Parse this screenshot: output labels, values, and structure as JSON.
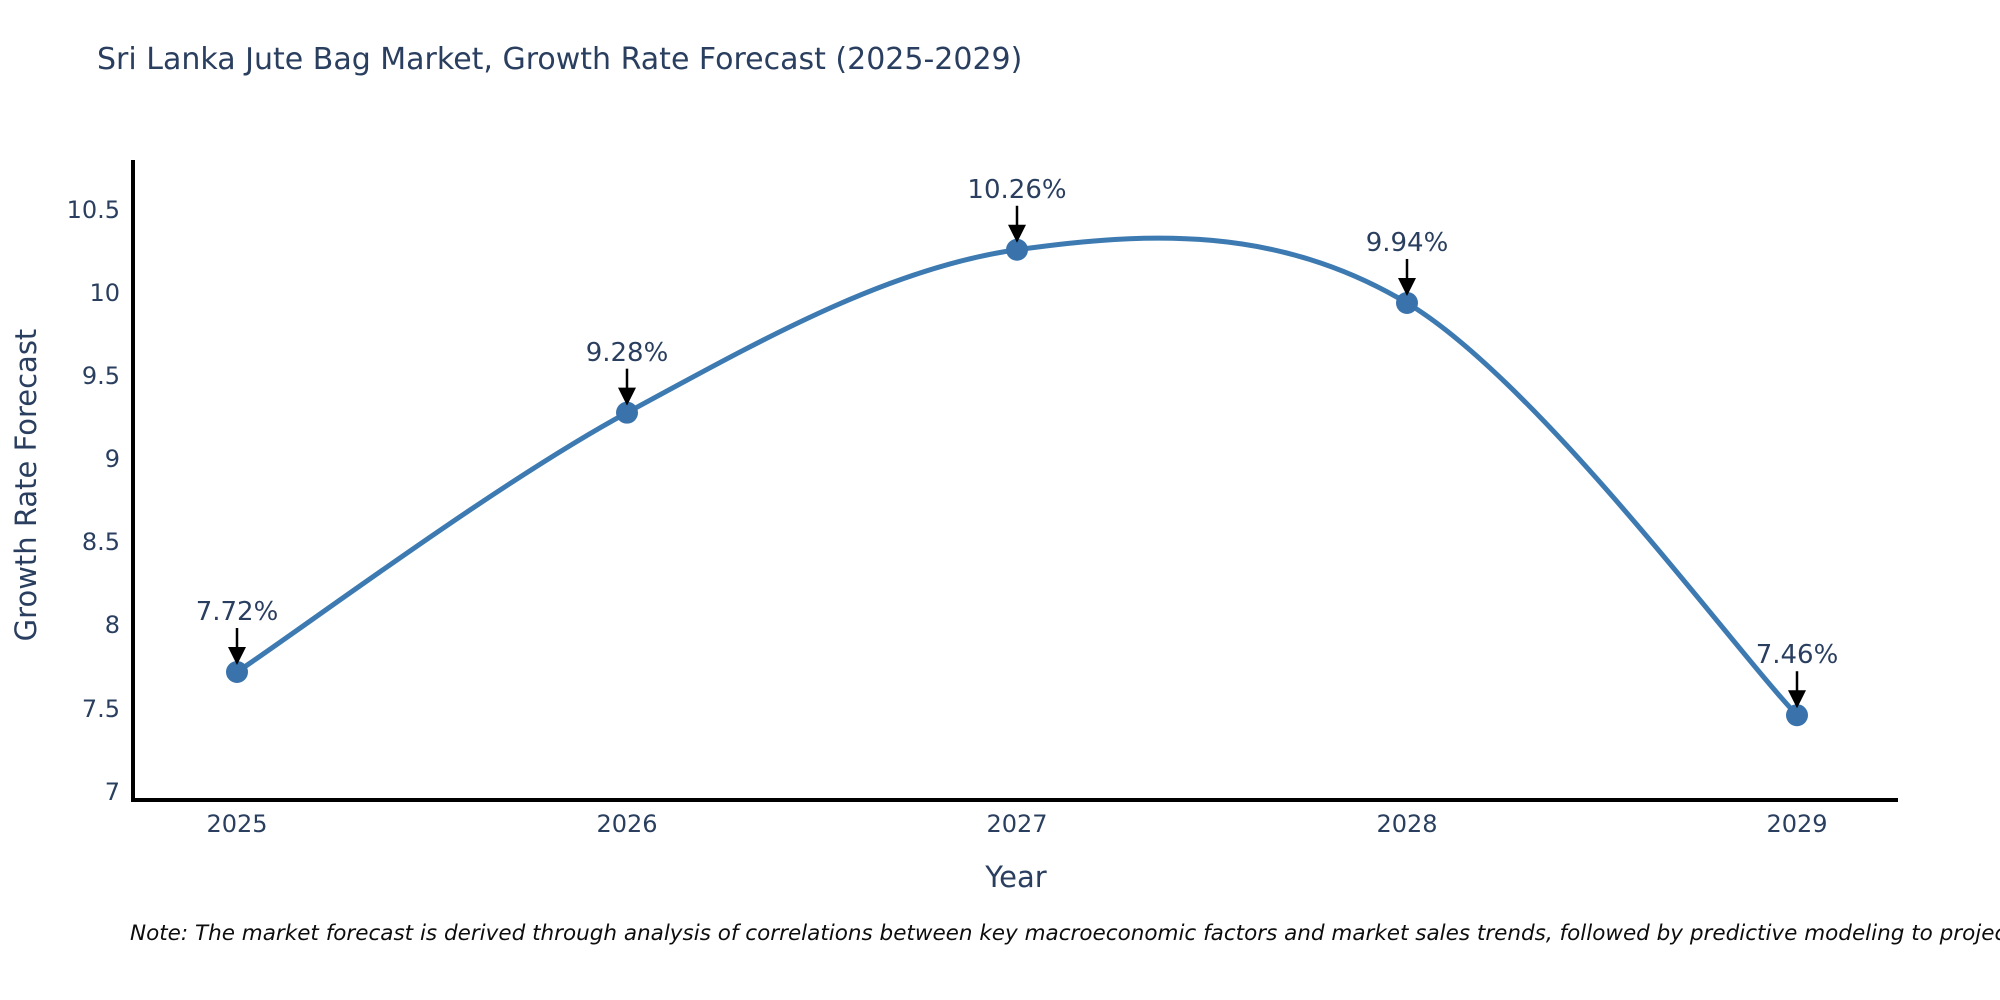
{
  "note": "Note: The market forecast is derived through analysis of correlations between key macroeconomic factors and market sales trends, followed by predictive modeling to project future sal",
  "chart_data": {
    "type": "line",
    "title": "Sri Lanka Jute Bag Market, Growth Rate Forecast (2025-2029)",
    "categories": [
      "2025",
      "2026",
      "2027",
      "2028",
      "2029"
    ],
    "values": [
      7.72,
      9.28,
      10.26,
      9.94,
      7.46
    ],
    "point_labels": [
      "7.72%",
      "9.28%",
      "10.26%",
      "9.94%",
      "7.46%"
    ],
    "series_name": "Growth Rate Forecast",
    "xlabel": "Year",
    "ylabel": "Growth Rate Forecast",
    "yticks": [
      7,
      7.5,
      8,
      8.5,
      9,
      9.5,
      10,
      10.5
    ],
    "ylim": [
      6.95,
      10.8
    ],
    "grid": false,
    "legend": false,
    "line_shape": "spline",
    "annotation_style": "value label with downward black arrow onto each marker",
    "colors": {
      "line": "#3d7ab1",
      "marker": "#3a73ac",
      "axis": "#000000",
      "arrow": "#000000",
      "text": "#2a3f5f",
      "note_text": "#0d0d0d",
      "background": "#ffffff"
    }
  }
}
